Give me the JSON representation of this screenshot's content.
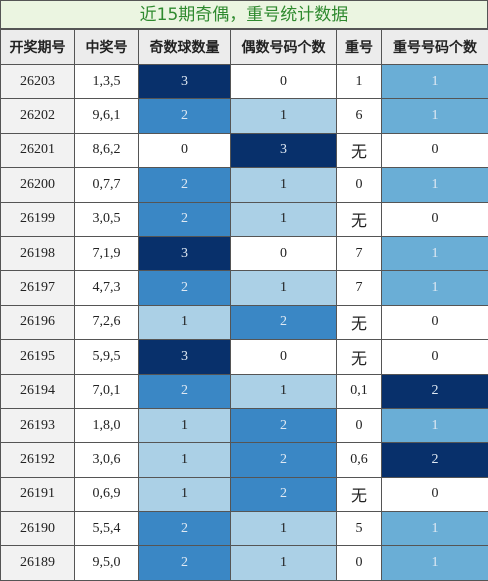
{
  "title": "近15期奇偶，重号统计数据",
  "table": {
    "header": [
      "开奖期号",
      "中奖号",
      "奇数球数量",
      "偶数号码个数",
      "重号",
      "重号号码个数"
    ],
    "rows": [
      [
        "26203",
        "1,3,5",
        3,
        0,
        "1",
        1
      ],
      [
        "26202",
        "9,6,1",
        2,
        1,
        "6",
        1
      ],
      [
        "26201",
        "8,6,2",
        0,
        3,
        "无",
        0
      ],
      [
        "26200",
        "0,7,7",
        2,
        1,
        "0",
        1
      ],
      [
        "26199",
        "3,0,5",
        2,
        1,
        "无",
        0
      ],
      [
        "26198",
        "7,1,9",
        3,
        0,
        "7",
        1
      ],
      [
        "26197",
        "4,7,3",
        2,
        1,
        "7",
        1
      ],
      [
        "26196",
        "7,2,6",
        1,
        2,
        "无",
        0
      ],
      [
        "26195",
        "5,9,5",
        3,
        0,
        "无",
        0
      ],
      [
        "26194",
        "7,0,1",
        2,
        1,
        "0,1",
        2
      ],
      [
        "26193",
        "1,8,0",
        1,
        2,
        "0",
        1
      ],
      [
        "26192",
        "3,0,6",
        1,
        2,
        "0,6",
        2
      ],
      [
        "26191",
        "0,6,9",
        1,
        2,
        "无",
        0
      ],
      [
        "26190",
        "5,5,4",
        2,
        1,
        "5",
        1
      ],
      [
        "26189",
        "9,5,0",
        2,
        1,
        "0",
        1
      ]
    ]
  }
}
